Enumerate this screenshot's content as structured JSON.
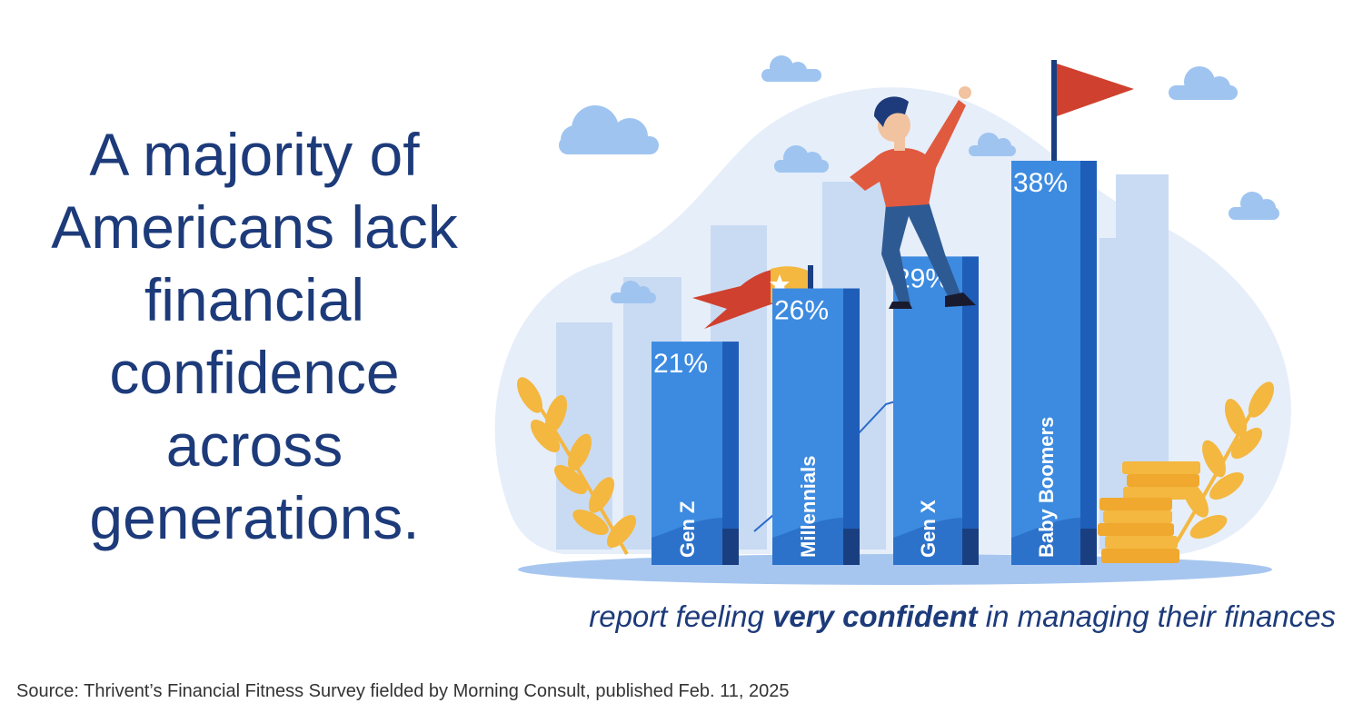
{
  "headline": {
    "lines": [
      "A majority of",
      "Americans lack",
      "financial",
      "confidence",
      "across",
      "generations."
    ]
  },
  "caption": {
    "before": "report feeling ",
    "emphasis": "very confident",
    "after": " in managing their finances"
  },
  "source": "Source: Thrivent’s Financial Fitness Survey fielded by Morning Consult, published Feb. 11, 2025",
  "colors": {
    "text_navy": "#1d3b7a",
    "bar_front": "#3d8be0",
    "bar_side": "#1f5eb8",
    "bar_dark": "#1a3f80",
    "flag_red": "#d0402e",
    "leaf_gold": "#f4b73f",
    "blob": "#e6eefa",
    "cloud": "#9fc4f0"
  },
  "icons": {
    "gear": "gear-icon",
    "flag": "red-flag-icon",
    "pennant": "star-pennant-icon",
    "person": "climbing-person-illustration",
    "coins": "coin-stack-icon",
    "leaves": "laurel-branch-icon"
  },
  "chart_data": {
    "type": "bar",
    "categories": [
      "Gen Z",
      "Millennials",
      "Gen X",
      "Baby Boomers"
    ],
    "values": [
      21,
      26,
      29,
      38
    ],
    "value_labels": [
      "21%",
      "26%",
      "29%",
      "38%"
    ],
    "ylim": [
      0,
      38
    ],
    "grid": false,
    "legend": "none"
  }
}
